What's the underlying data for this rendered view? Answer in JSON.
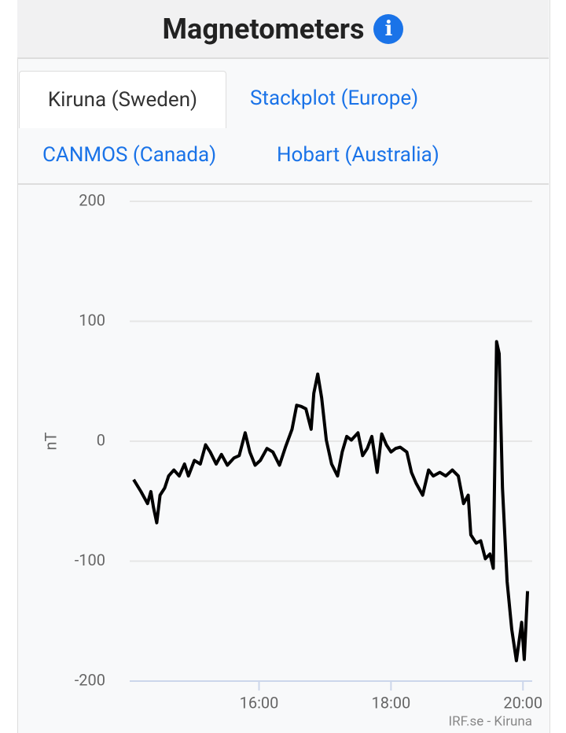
{
  "header": {
    "title": "Magnetometers"
  },
  "tabs": [
    "Kiruna (Sweden)",
    "Stackplot (Europe)",
    "CANMOS (Canada)",
    "Hobart (Australia)"
  ],
  "chart_data": {
    "type": "line",
    "ylabel": "nT",
    "credits": "IRF.se - Kiruna",
    "x": [
      14.1,
      14.21,
      14.31,
      14.36,
      14.4,
      14.45,
      14.5,
      14.57,
      14.63,
      14.71,
      14.79,
      14.87,
      14.93,
      15.02,
      15.11,
      15.19,
      15.26,
      15.35,
      15.43,
      15.52,
      15.62,
      15.7,
      15.79,
      15.86,
      15.94,
      16.02,
      16.12,
      16.21,
      16.31,
      16.4,
      16.5,
      16.57,
      16.64,
      16.71,
      16.79,
      16.83,
      16.89,
      16.95,
      17.02,
      17.1,
      17.19,
      17.26,
      17.33,
      17.4,
      17.5,
      17.57,
      17.64,
      17.71,
      17.79,
      17.86,
      17.93,
      18.0,
      18.07,
      18.14,
      18.24,
      18.31,
      18.38,
      18.48,
      18.57,
      18.64,
      18.74,
      18.83,
      18.93,
      19.02,
      19.1,
      19.17,
      19.21,
      19.29,
      19.36,
      19.43,
      19.5,
      19.55,
      19.6,
      19.64,
      19.69,
      19.76,
      19.83,
      19.9,
      19.98,
      20.02,
      20.07
    ],
    "series": [
      {
        "name": "Kiruna",
        "color": "#000000",
        "values": [
          -32,
          -42,
          -52,
          -42,
          -55,
          -68,
          -45,
          -39,
          -29,
          -24,
          -29,
          -19,
          -29,
          -16,
          -19,
          -3,
          -9,
          -19,
          -11,
          -20,
          -14,
          -12,
          7,
          -9,
          -20,
          -16,
          -6,
          -9,
          -20,
          -5,
          10,
          30,
          29,
          27,
          10,
          40,
          56,
          36,
          1,
          -19,
          -29,
          -9,
          4,
          1,
          7,
          -12,
          -6,
          4,
          -26,
          6,
          -3,
          -9,
          -6,
          -5,
          -9,
          -26,
          -35,
          -45,
          -24,
          -29,
          -26,
          -29,
          -24,
          -29,
          -52,
          -45,
          -78,
          -85,
          -83,
          -98,
          -94,
          -106,
          83,
          73,
          -39,
          -117,
          -157,
          -183,
          -151,
          -182,
          -125
        ]
      }
    ],
    "xlim": [
      14.04,
      20.14
    ],
    "xticks": [
      {
        "value": 16,
        "label": "16:00"
      },
      {
        "value": 18,
        "label": "18:00"
      },
      {
        "value": 20,
        "label": "20:00"
      }
    ],
    "ylim": [
      -200,
      200
    ],
    "yticks": [
      -200,
      -100,
      0,
      100,
      200
    ],
    "grid": true
  }
}
